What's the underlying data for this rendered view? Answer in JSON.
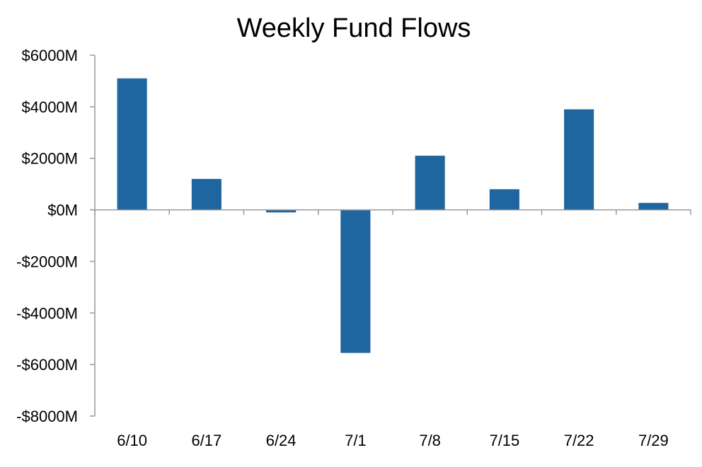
{
  "chart_data": {
    "type": "bar",
    "title": "Weekly Fund Flows",
    "xlabel": "",
    "ylabel": "",
    "categories": [
      "6/10",
      "6/17",
      "6/24",
      "7/1",
      "7/8",
      "7/15",
      "7/22",
      "7/29"
    ],
    "values": [
      5100,
      1200,
      -100,
      -5550,
      2100,
      800,
      3900,
      270
    ],
    "unit": "$M",
    "ylim": [
      -8000,
      6000
    ],
    "yticks": [
      6000,
      4000,
      2000,
      0,
      -2000,
      -4000,
      -6000,
      -8000
    ],
    "ytick_labels": [
      "$6000M",
      "$4000M",
      "$2000M",
      "$0M",
      "-$2000M",
      "-$4000M",
      "-$6000M",
      "-$8000M"
    ],
    "grid": false,
    "legend": "none",
    "bar_color": "#1f65a0",
    "axis_color": "#999999"
  }
}
